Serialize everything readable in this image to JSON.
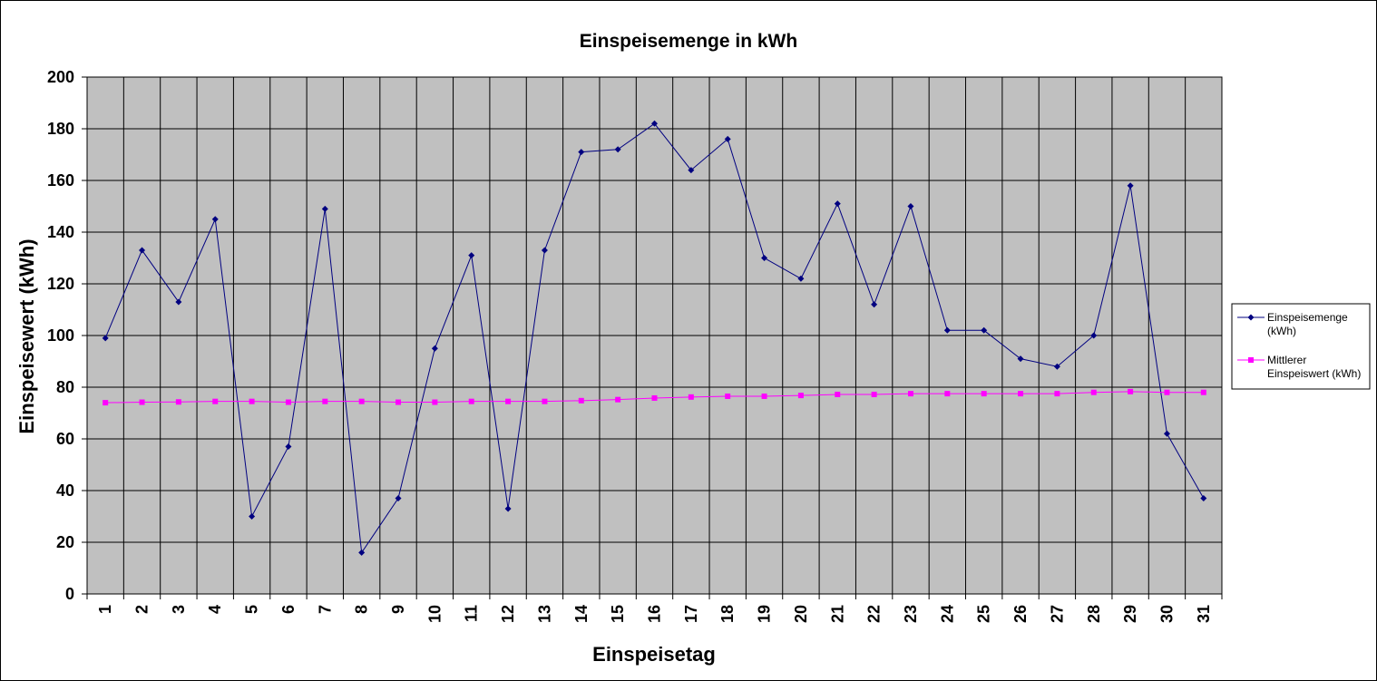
{
  "chart_data": {
    "type": "line",
    "title": "Einspeisemenge in kWh",
    "xlabel": "Einspeisetag",
    "ylabel": "Einspeisewert  (kWh)",
    "ylim": [
      0,
      200
    ],
    "yticks": [
      0,
      20,
      40,
      60,
      80,
      100,
      120,
      140,
      160,
      180,
      200
    ],
    "grid": true,
    "plot_background": "#c0c0c0",
    "legend_position": "right",
    "categories": [
      "1",
      "2",
      "3",
      "4",
      "5",
      "6",
      "7",
      "8",
      "9",
      "10",
      "11",
      "12",
      "13",
      "14",
      "15",
      "16",
      "17",
      "18",
      "19",
      "20",
      "21",
      "22",
      "23",
      "24",
      "25",
      "26",
      "27",
      "28",
      "29",
      "30",
      "31"
    ],
    "series": [
      {
        "name": "Einspeisemenge (kWh)",
        "legend_lines": [
          "Einspeisemenge",
          "(kWh)"
        ],
        "color": "#000080",
        "marker": "diamond",
        "values": [
          99,
          133,
          113,
          145,
          30,
          57,
          149,
          16,
          37,
          95,
          131,
          33,
          133,
          171,
          172,
          182,
          164,
          176,
          130,
          122,
          151,
          112,
          150,
          102,
          102,
          91,
          88,
          100,
          158,
          62,
          37
        ]
      },
      {
        "name": "Mittlerer Einspeiswert (kWh)",
        "legend_lines": [
          "Mittlerer",
          "Einspeiswert (kWh)"
        ],
        "color": "#ff00ff",
        "marker": "square",
        "values": [
          74,
          74.2,
          74.3,
          74.5,
          74.5,
          74.2,
          74.5,
          74.5,
          74.2,
          74.2,
          74.5,
          74.5,
          74.5,
          74.8,
          75.2,
          75.8,
          76.2,
          76.5,
          76.5,
          76.8,
          77.2,
          77.2,
          77.5,
          77.5,
          77.5,
          77.5,
          77.5,
          78,
          78.3,
          78,
          78
        ]
      }
    ]
  }
}
